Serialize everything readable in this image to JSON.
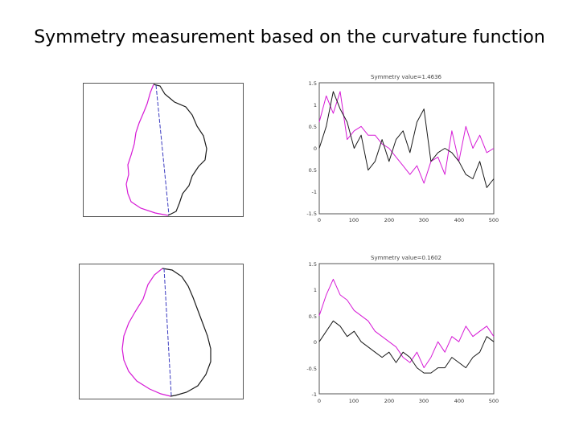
{
  "slide": {
    "title": "Symmetry measurement based on the curvature function"
  },
  "colors": {
    "left_half": "#d61ad6",
    "right_half": "#1a1a1a",
    "axis": "#3a3ac0",
    "frame": "#555555"
  },
  "chart_data": [
    {
      "type": "line",
      "title": "Symmetry value=1.4636",
      "xlim": [
        0,
        500
      ],
      "ylim": [
        -1.5,
        1.5
      ],
      "x_ticks": [
        "0",
        "100",
        "200",
        "300",
        "400",
        "500"
      ],
      "y_ticks": [
        "1.5",
        "1",
        "0.5",
        "0",
        "0.5",
        "-1",
        "-1.5"
      ],
      "x": [
        0,
        20,
        40,
        60,
        80,
        100,
        120,
        140,
        160,
        180,
        200,
        220,
        240,
        260,
        280,
        300,
        320,
        340,
        360,
        380,
        400,
        420,
        440,
        460,
        480,
        500
      ],
      "series": [
        {
          "values": [
            0.6,
            1.2,
            0.8,
            1.3,
            0.2,
            0.4,
            0.5,
            0.3,
            0.3,
            0.1,
            0.0,
            -0.2,
            -0.4,
            -0.6,
            -0.4,
            -0.8,
            -0.3,
            -0.2,
            -0.6,
            0.4,
            -0.3,
            0.5,
            0.0,
            0.3,
            -0.1,
            0.0
          ]
        },
        {
          "values": [
            0.0,
            0.5,
            1.3,
            0.9,
            0.6,
            0.0,
            0.3,
            -0.5,
            -0.3,
            0.2,
            -0.3,
            0.2,
            0.4,
            -0.1,
            0.6,
            0.9,
            -0.3,
            -0.1,
            0.0,
            -0.1,
            -0.3,
            -0.6,
            -0.7,
            -0.3,
            -0.9,
            -0.7
          ]
        }
      ]
    },
    {
      "type": "line",
      "title": "Symmetry value=0.1602",
      "xlim": [
        0,
        500
      ],
      "ylim": [
        -1,
        1.5
      ],
      "x_ticks": [
        "0",
        "100",
        "200",
        "300",
        "400",
        "500"
      ],
      "y_ticks": [
        "1.5",
        "1",
        "0.5",
        "0",
        "-0.5",
        "-1"
      ],
      "x": [
        0,
        20,
        40,
        60,
        80,
        100,
        120,
        140,
        160,
        180,
        200,
        220,
        240,
        260,
        280,
        300,
        320,
        340,
        360,
        380,
        400,
        420,
        440,
        460,
        480,
        500
      ],
      "series": [
        {
          "values": [
            0.5,
            0.9,
            1.2,
            0.9,
            0.8,
            0.6,
            0.5,
            0.4,
            0.2,
            0.1,
            0.0,
            -0.1,
            -0.3,
            -0.4,
            -0.2,
            -0.5,
            -0.3,
            0.0,
            -0.2,
            0.1,
            0.0,
            0.3,
            0.1,
            0.2,
            0.3,
            0.1
          ]
        },
        {
          "values": [
            0.0,
            0.2,
            0.4,
            0.3,
            0.1,
            0.2,
            0.0,
            -0.1,
            -0.2,
            -0.3,
            -0.2,
            -0.4,
            -0.2,
            -0.3,
            -0.5,
            -0.6,
            -0.6,
            -0.5,
            -0.5,
            -0.3,
            -0.4,
            -0.5,
            -0.3,
            -0.2,
            0.1,
            0.0
          ]
        }
      ]
    }
  ]
}
